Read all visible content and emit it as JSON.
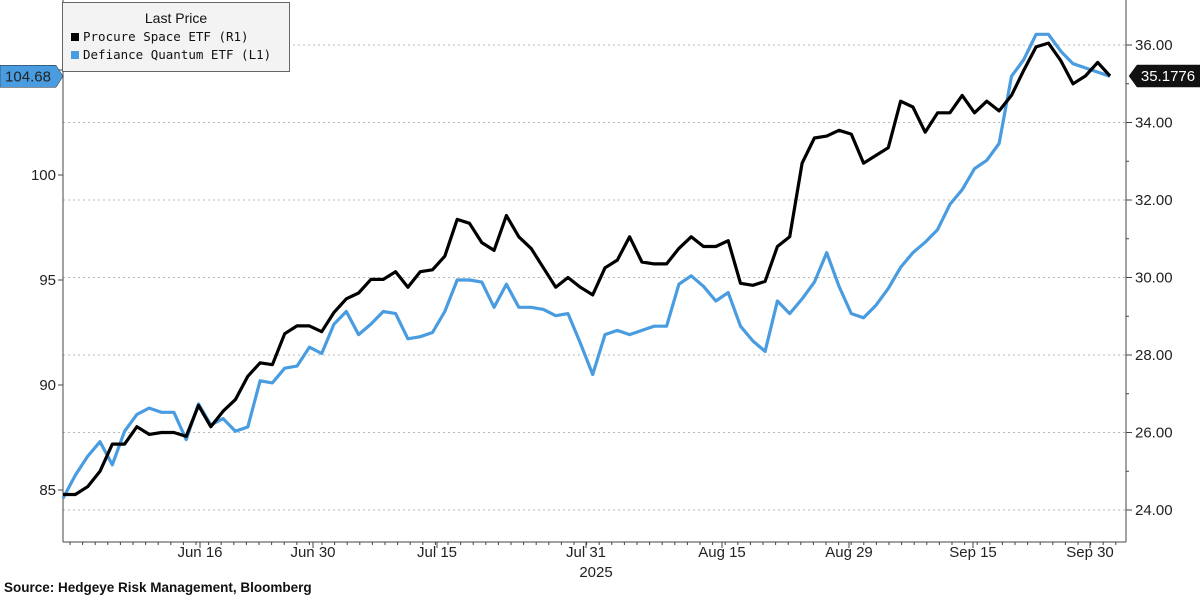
{
  "legend": {
    "title": "Last Price",
    "series": [
      {
        "label": "Procure Space ETF  (R1)",
        "color": "#000000"
      },
      {
        "label": "Defiance Quantum ETF  (L1)",
        "color": "#4a9ce0"
      }
    ]
  },
  "source_text": "Source: Hedgeye Risk Management, Bloomberg",
  "chart_data": {
    "type": "line",
    "x_ticks": [
      "Jun 16",
      "Jun 30",
      "Jul 15",
      "Jul 31",
      "Aug 15",
      "Aug 29",
      "Sep 15",
      "Sep 30"
    ],
    "year_label": "2025",
    "left_axis": {
      "ticks": [
        "85",
        "90",
        "95",
        "100",
        "105"
      ],
      "range": [
        83.4,
        110
      ]
    },
    "right_axis": {
      "ticks": [
        "24.00",
        "26.00",
        "28.00",
        "30.00",
        "32.00",
        "34.00",
        "36.00"
      ],
      "range": [
        23.3,
        37.7
      ]
    },
    "last_value_labels": {
      "left": "104.68",
      "right": "35.1776"
    },
    "series": [
      {
        "name": "Procure Space ETF",
        "axis": "right",
        "color": "#000000",
        "values": [
          24.4,
          24.4,
          24.6,
          25.0,
          25.7,
          25.7,
          26.15,
          25.95,
          26.0,
          26.0,
          25.9,
          26.7,
          26.15,
          26.55,
          26.85,
          27.45,
          27.8,
          27.75,
          28.55,
          28.75,
          28.75,
          28.6,
          29.1,
          29.45,
          29.6,
          29.95,
          29.95,
          30.15,
          29.75,
          30.15,
          30.2,
          30.55,
          31.5,
          31.4,
          30.9,
          30.7,
          31.6,
          31.05,
          30.75,
          30.25,
          29.75,
          30.0,
          29.75,
          29.55,
          30.25,
          30.45,
          31.05,
          30.4,
          30.35,
          30.35,
          30.75,
          31.05,
          30.8,
          30.8,
          30.95,
          29.85,
          29.8,
          29.9,
          30.8,
          31.05,
          32.95,
          33.6,
          33.65,
          33.8,
          33.7,
          32.95,
          33.15,
          33.35,
          34.55,
          34.4,
          33.75,
          34.25,
          34.25,
          34.7,
          34.25,
          34.55,
          34.3,
          34.7,
          35.35,
          35.95,
          36.05,
          35.6,
          35.0,
          35.2,
          35.55,
          35.2
        ]
      },
      {
        "name": "Defiance Quantum ETF",
        "axis": "left",
        "color": "#4a9ce0",
        "values": [
          84.6,
          85.7,
          86.6,
          87.3,
          86.2,
          87.8,
          88.6,
          88.9,
          88.7,
          88.7,
          87.4,
          89.1,
          88.1,
          88.4,
          87.8,
          88.0,
          90.2,
          90.1,
          90.8,
          90.9,
          91.8,
          91.5,
          92.9,
          93.5,
          92.4,
          92.9,
          93.5,
          93.4,
          92.2,
          92.3,
          92.5,
          93.5,
          95.0,
          95.0,
          94.9,
          93.7,
          94.8,
          93.7,
          93.7,
          93.6,
          93.3,
          93.4,
          92.0,
          90.5,
          92.4,
          92.6,
          92.4,
          92.6,
          92.8,
          92.8,
          94.8,
          95.2,
          94.7,
          94.0,
          94.4,
          92.8,
          92.1,
          91.6,
          94.0,
          93.4,
          94.1,
          94.9,
          96.3,
          94.7,
          93.4,
          93.2,
          93.8,
          94.6,
          95.6,
          96.3,
          96.8,
          97.4,
          98.6,
          99.3,
          100.3,
          100.7,
          101.5,
          104.7,
          105.5,
          106.7,
          106.7,
          105.9,
          105.3,
          105.1,
          104.9,
          104.7
        ]
      }
    ]
  }
}
